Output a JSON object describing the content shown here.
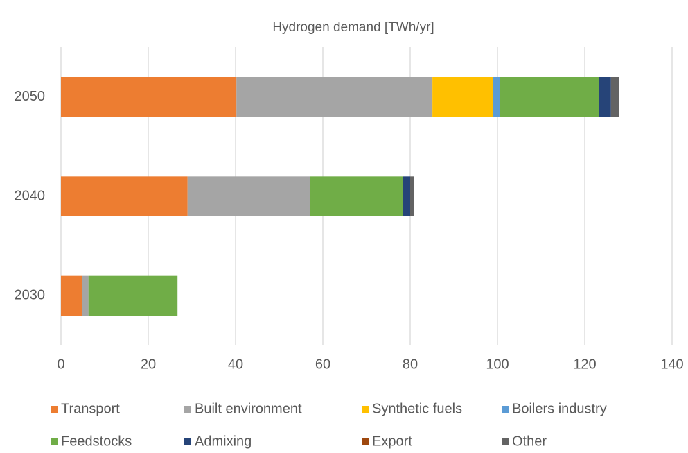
{
  "chart_data": {
    "type": "bar",
    "orientation": "horizontal",
    "stacked": true,
    "title": "Hydrogen demand [TWh/yr]",
    "categories": [
      "2030",
      "2040",
      "2050"
    ],
    "series": [
      {
        "name": "Transport",
        "color": "#ed7d31",
        "values": [
          4.9,
          29.0,
          40.2
        ]
      },
      {
        "name": "Built environment",
        "color": "#a5a5a5",
        "values": [
          1.4,
          28.0,
          44.9
        ]
      },
      {
        "name": "Synthetic fuels",
        "color": "#ffc000",
        "values": [
          0,
          0,
          13.9
        ]
      },
      {
        "name": "Boilers industry",
        "color": "#5b9bd5",
        "values": [
          0,
          0,
          1.5
        ]
      },
      {
        "name": "Feedstocks",
        "color": "#70ad47",
        "values": [
          20.4,
          21.4,
          22.7
        ]
      },
      {
        "name": "Admixing",
        "color": "#264478",
        "values": [
          0,
          1.6,
          2.8
        ]
      },
      {
        "name": "Export",
        "color": "#9e480e",
        "values": [
          0,
          0,
          0
        ]
      },
      {
        "name": "Other",
        "color": "#636363",
        "values": [
          0,
          0.8,
          1.8
        ]
      }
    ],
    "xlim": [
      0,
      140
    ],
    "xticks": [
      0,
      20,
      40,
      60,
      80,
      100,
      120,
      140
    ],
    "grid": true,
    "legend": "bottom"
  }
}
